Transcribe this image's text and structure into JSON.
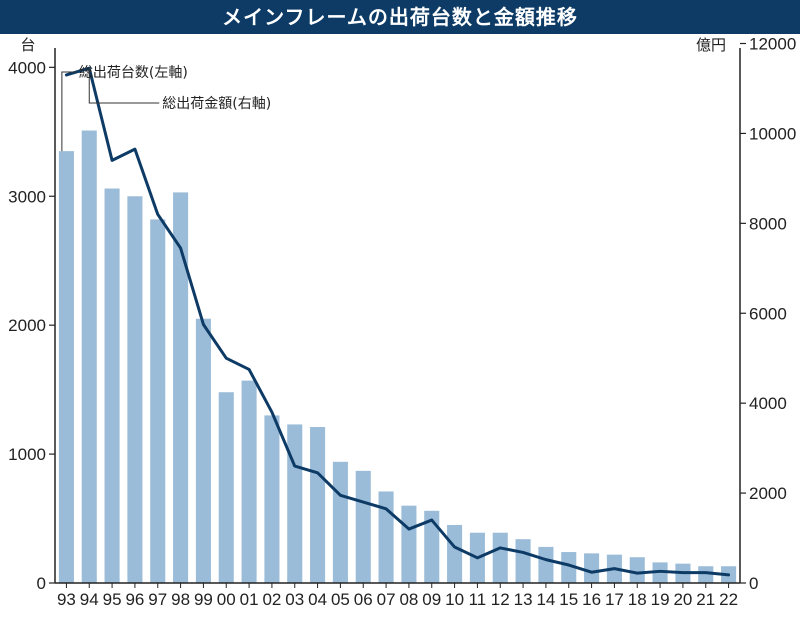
{
  "title": "メインフレームの出荷台数と金額推移",
  "colors": {
    "bar": "#9bbcd8",
    "line": "#0d3b66",
    "titlebar": "#0d3b66"
  },
  "chart_data": {
    "type": "bar",
    "categories": [
      "93",
      "94",
      "95",
      "96",
      "97",
      "98",
      "99",
      "00",
      "01",
      "02",
      "03",
      "04",
      "05",
      "06",
      "07",
      "08",
      "09",
      "10",
      "11",
      "12",
      "13",
      "14",
      "15",
      "16",
      "17",
      "18",
      "19",
      "20",
      "21",
      "22"
    ],
    "series": [
      {
        "name": "総出荷台数(左軸)",
        "axis": "left",
        "kind": "bar",
        "values": [
          3350,
          3510,
          3060,
          3000,
          2820,
          3030,
          2050,
          1480,
          1570,
          1300,
          1230,
          1210,
          940,
          870,
          710,
          600,
          560,
          450,
          390,
          390,
          340,
          280,
          240,
          230,
          220,
          200,
          160,
          150,
          130,
          130
        ]
      },
      {
        "name": "総出荷金額(右軸)",
        "axis": "right",
        "kind": "line",
        "values": [
          11300,
          11450,
          9400,
          9650,
          8200,
          7450,
          5750,
          5000,
          4750,
          3800,
          2600,
          2450,
          1950,
          1800,
          1650,
          1200,
          1400,
          800,
          560,
          780,
          680,
          520,
          400,
          240,
          320,
          220,
          260,
          230,
          230,
          180
        ]
      }
    ],
    "ylabel_left": "台",
    "ylabel_right": "億円",
    "yticks_left": [
      "0",
      "1000",
      "2000",
      "3000",
      "4000"
    ],
    "yticks_right": [
      "0",
      "2000",
      "4000",
      "6000",
      "8000",
      "10000",
      "12000"
    ],
    "ylim_left": [
      0,
      4150
    ],
    "ylim_right": [
      0,
      11900
    ],
    "grid": false,
    "legend": "callouts near top-left"
  }
}
